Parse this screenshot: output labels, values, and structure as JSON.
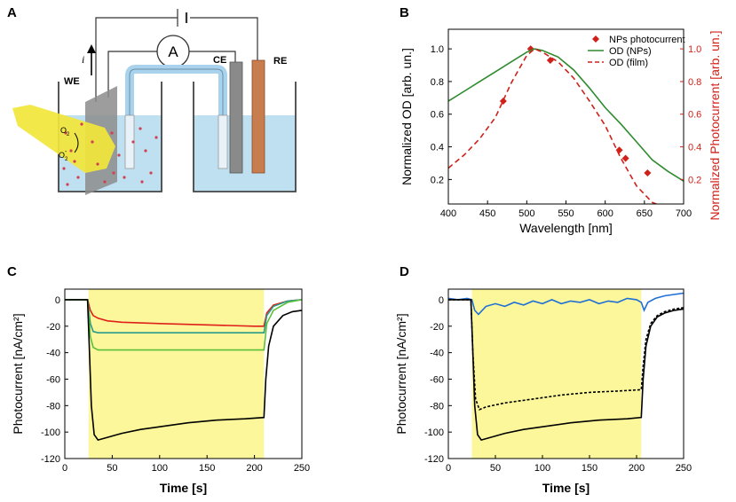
{
  "panels": {
    "a": "A",
    "b": "B",
    "c": "C",
    "d": "D"
  },
  "schematic": {
    "ammeter": "A",
    "current_label": "i",
    "we": "WE",
    "ce": "CE",
    "re": "RE",
    "o2_top": "O",
    "o2_top_sub": "2",
    "o2_bottom": "O",
    "o2_bottom_sub": "2",
    "o2_bottom_sup": "-",
    "colors": {
      "solution": "#bfe0f1",
      "light_beam": "#f2e63a",
      "electrode_re": "#c87d4f",
      "electrode_ce": "#8a8a8a",
      "bridge": "#a9d2ec"
    }
  },
  "chart_data": [
    {
      "id": "B",
      "type": "line",
      "xlabel": "Wavelength [nm]",
      "ylabel": "Normalized OD [arb. un.]",
      "y2label": "Normalized Photocurrent [arb. un.]",
      "xlim": [
        400,
        700
      ],
      "ylim": [
        0.05,
        1.12
      ],
      "y2lim": [
        0.05,
        1.12
      ],
      "xticks": [
        400,
        450,
        500,
        550,
        600,
        650,
        700
      ],
      "yticks": [
        0.2,
        0.4,
        0.6,
        0.8,
        1.0
      ],
      "ytick_labels": [
        "0.2",
        "0.4",
        "0.6",
        "0.8",
        "1.0"
      ],
      "y2ticks": [
        0.2,
        0.4,
        0.6,
        0.8,
        1.0
      ],
      "y2tick_labels": [
        "0.2",
        "0.4",
        "0.6",
        "0.8",
        "1.0"
      ],
      "legend": {
        "position": "top-right",
        "entries": [
          "NPs photocurrent",
          "OD (NPs)",
          "OD (film)"
        ]
      },
      "series": [
        {
          "name": "NPs photocurrent",
          "style": "markers",
          "color": "#d0201a",
          "x": [
            470,
            505,
            530,
            618,
            626,
            654
          ],
          "y": [
            0.68,
            1.0,
            0.93,
            0.38,
            0.33,
            0.24
          ]
        },
        {
          "name": "OD (NPs)",
          "style": "solid",
          "color": "#2e8b2e",
          "x": [
            400,
            420,
            440,
            460,
            480,
            500,
            510,
            520,
            540,
            560,
            580,
            600,
            620,
            640,
            660,
            680,
            700
          ],
          "y": [
            0.68,
            0.74,
            0.8,
            0.86,
            0.92,
            0.98,
            1.0,
            0.99,
            0.95,
            0.87,
            0.76,
            0.64,
            0.54,
            0.43,
            0.32,
            0.25,
            0.19
          ]
        },
        {
          "name": "OD (film)",
          "style": "dashed",
          "color": "#d0201a",
          "x": [
            400,
            420,
            440,
            460,
            480,
            500,
            510,
            520,
            540,
            560,
            580,
            600,
            620,
            640,
            660,
            680,
            700
          ],
          "y": [
            0.27,
            0.35,
            0.45,
            0.58,
            0.79,
            0.96,
            1.0,
            0.98,
            0.92,
            0.82,
            0.68,
            0.53,
            0.33,
            0.16,
            0.06,
            0.02,
            0.01
          ]
        }
      ]
    },
    {
      "id": "C",
      "type": "line",
      "xlabel": "Time [s]",
      "ylabel": "Photocurrent [nA/cm²]",
      "xlim": [
        0,
        250
      ],
      "ylim": [
        -120,
        8
      ],
      "xticks": [
        0,
        50,
        100,
        150,
        200,
        250
      ],
      "yticks": [
        -120,
        -100,
        -80,
        -60,
        -40,
        -20,
        0
      ],
      "illumination": {
        "start": 25,
        "end": 210,
        "color": "#fbf79a"
      },
      "series": [
        {
          "name": "red",
          "color": "#e0201a",
          "x": [
            0,
            24,
            27,
            30,
            35,
            45,
            60,
            100,
            150,
            200,
            210,
            213,
            220,
            235,
            250
          ],
          "y": [
            0,
            0,
            -8,
            -12,
            -14,
            -16,
            -17,
            -18,
            -19,
            -20,
            -20,
            -10,
            -4,
            -1,
            0
          ]
        },
        {
          "name": "teal",
          "color": "#2a9a8a",
          "x": [
            0,
            24,
            27,
            30,
            35,
            50,
            100,
            150,
            200,
            210,
            213,
            220,
            235,
            250
          ],
          "y": [
            0,
            0,
            -18,
            -24,
            -25,
            -25,
            -25,
            -25,
            -25,
            -25,
            -12,
            -5,
            -1,
            0
          ]
        },
        {
          "name": "green",
          "color": "#5bbf3a",
          "x": [
            0,
            24,
            27,
            30,
            35,
            50,
            100,
            150,
            200,
            210,
            213,
            220,
            235,
            250
          ],
          "y": [
            0,
            0,
            -28,
            -36,
            -38,
            -38,
            -38,
            -38,
            -38,
            -38,
            -18,
            -8,
            -2,
            0
          ]
        },
        {
          "name": "black",
          "color": "#000000",
          "x": [
            0,
            24,
            26,
            28,
            31,
            35,
            45,
            60,
            80,
            100,
            130,
            160,
            190,
            210,
            212,
            215,
            220,
            230,
            240,
            250
          ],
          "y": [
            0,
            0,
            -40,
            -80,
            -102,
            -106,
            -104,
            -101,
            -98,
            -96,
            -93,
            -91,
            -90,
            -89,
            -60,
            -35,
            -20,
            -12,
            -9,
            -8
          ]
        }
      ]
    },
    {
      "id": "D",
      "type": "line",
      "xlabel": "Time [s]",
      "ylabel": "Photocurrent [nA/cm²]",
      "xlim": [
        0,
        250
      ],
      "ylim": [
        -120,
        8
      ],
      "xticks": [
        0,
        50,
        100,
        150,
        200,
        250
      ],
      "yticks": [
        -120,
        -100,
        -80,
        -60,
        -40,
        -20,
        0
      ],
      "illumination": {
        "start": 25,
        "end": 205,
        "color": "#fbf79a"
      },
      "series": [
        {
          "name": "blue",
          "color": "#1f6fd6",
          "style": "solid",
          "x": [
            0,
            10,
            20,
            25,
            28,
            32,
            40,
            50,
            60,
            70,
            80,
            90,
            100,
            110,
            120,
            130,
            140,
            150,
            160,
            170,
            180,
            190,
            200,
            205,
            208,
            212,
            220,
            230,
            240,
            250
          ],
          "y": [
            1,
            0,
            1,
            0,
            -8,
            -11,
            -5,
            -3,
            -5,
            -2,
            -4,
            -1,
            -3,
            0,
            -3,
            -1,
            -2,
            0,
            -3,
            -1,
            -2,
            1,
            0,
            -2,
            -8,
            -2,
            1,
            3,
            4,
            5
          ]
        },
        {
          "name": "black-dashed",
          "color": "#000000",
          "style": "dashed",
          "x": [
            0,
            24,
            26,
            29,
            33,
            40,
            60,
            90,
            120,
            150,
            180,
            205,
            207,
            210,
            215,
            222,
            230,
            240,
            250
          ],
          "y": [
            0,
            0,
            -40,
            -75,
            -83,
            -81,
            -78,
            -75,
            -72,
            -70,
            -69,
            -68,
            -50,
            -30,
            -18,
            -12,
            -9,
            -7,
            -6
          ]
        },
        {
          "name": "black",
          "color": "#000000",
          "style": "solid",
          "x": [
            0,
            24,
            26,
            28,
            31,
            35,
            45,
            60,
            80,
            100,
            130,
            160,
            190,
            205,
            207,
            210,
            215,
            222,
            230,
            240,
            250
          ],
          "y": [
            0,
            0,
            -40,
            -80,
            -102,
            -106,
            -104,
            -101,
            -98,
            -96,
            -93,
            -91,
            -90,
            -89,
            -60,
            -35,
            -20,
            -13,
            -10,
            -8,
            -7
          ]
        }
      ]
    }
  ]
}
